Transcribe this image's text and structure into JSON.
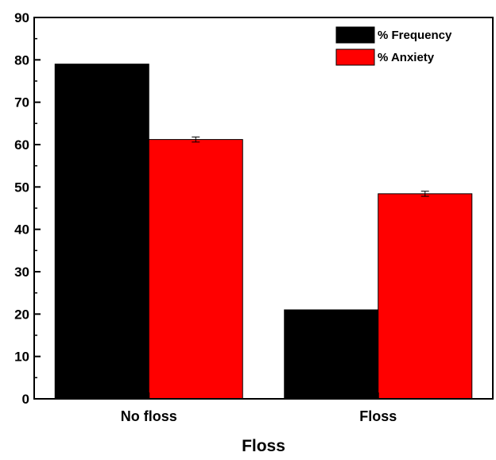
{
  "chart_data": {
    "type": "bar",
    "title": "",
    "xlabel": "Floss",
    "ylabel": "",
    "categories": [
      "No floss",
      "Floss"
    ],
    "series": [
      {
        "name": "% Frequency",
        "values": [
          79,
          21
        ],
        "color": "#000000"
      },
      {
        "name": "% Anxiety",
        "values": [
          61.2,
          48.4
        ],
        "error": [
          0.6,
          0.6
        ],
        "color": "#ff0000"
      }
    ],
    "ylim": [
      0,
      90
    ],
    "yticks": [
      0,
      10,
      20,
      30,
      40,
      50,
      60,
      70,
      80,
      90
    ],
    "grid": false,
    "legend_position": "top-right"
  }
}
